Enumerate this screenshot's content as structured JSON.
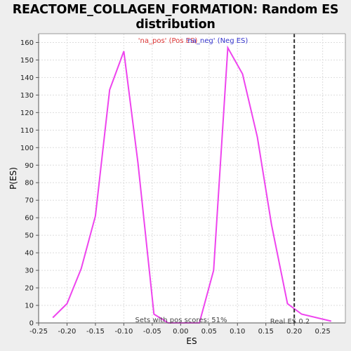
{
  "chart_data": {
    "type": "line",
    "title_line1": "REACTOME_COLLAGEN_FORMATION: Random ES",
    "title_line2": "distribution",
    "xlabel": "ES",
    "ylabel": "P(ES)",
    "xlim": [
      -0.25,
      0.29
    ],
    "ylim": [
      0,
      165
    ],
    "x_ticks": [
      "-0.25",
      "-0.20",
      "-0.15",
      "-0.10",
      "-0.05",
      "0.00",
      "0.05",
      "0.10",
      "0.15",
      "0.20",
      "0.25"
    ],
    "x_tick_values": [
      -0.25,
      -0.2,
      -0.15,
      -0.1,
      -0.05,
      0.0,
      0.05,
      0.1,
      0.15,
      0.2,
      0.25
    ],
    "y_ticks": [
      0,
      10,
      20,
      30,
      40,
      50,
      60,
      70,
      80,
      90,
      100,
      110,
      120,
      130,
      140,
      150,
      160
    ],
    "grid": true,
    "legend": [
      {
        "label": "'na_pos' (Pos ES)",
        "color": "#dd3333"
      },
      {
        "label": "'na_neg' (Neg ES)",
        "color": "#3333cc"
      }
    ],
    "series": [
      {
        "color": "#ee44ee",
        "x": [
          -0.225,
          -0.2,
          -0.175,
          -0.15,
          -0.125,
          -0.1,
          -0.075,
          -0.047,
          -0.022,
          0.005,
          0.033,
          0.058,
          0.083,
          0.109,
          0.135,
          0.16,
          0.188,
          0.213,
          0.265
        ],
        "y": [
          3,
          11,
          31,
          61,
          133,
          155,
          91,
          5,
          0,
          0,
          0,
          30,
          157,
          142,
          106,
          56,
          11,
          5,
          1
        ]
      }
    ],
    "real_es": 0.2,
    "real_es_label": "Real ES 0.2",
    "pos_scores_label": "Sets with pos scores: 51%"
  }
}
